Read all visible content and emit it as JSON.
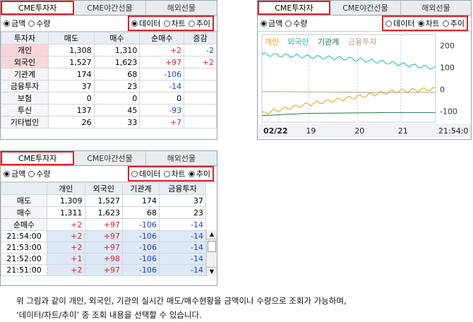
{
  "tabs": [
    "CME투자자",
    "CME야간선물",
    "해외선물"
  ],
  "unit_options": [
    "금액",
    "수량"
  ],
  "view_options": [
    "데이터",
    "차트",
    "추이"
  ],
  "panel1": {
    "headers": [
      "투자자",
      "매도",
      "매수",
      "순매수",
      "증감"
    ],
    "rows": [
      {
        "name": "개인",
        "sell": "1,308",
        "buy": "1,310",
        "net": "+2",
        "chg": "-2",
        "net_color": "red",
        "chg_color": "blue",
        "highlight": true
      },
      {
        "name": "외국인",
        "sell": "1,527",
        "buy": "1,623",
        "net": "+97",
        "chg": "+2",
        "net_color": "red",
        "chg_color": "red",
        "highlight": true
      },
      {
        "name": "기관계",
        "sell": "174",
        "buy": "68",
        "net": "-106",
        "chg": "",
        "net_color": "blue",
        "chg_color": "",
        "highlight": false
      },
      {
        "name": "금융투자",
        "sell": "37",
        "buy": "23",
        "net": "-14",
        "chg": "",
        "net_color": "blue",
        "chg_color": "",
        "highlight": false
      },
      {
        "name": "보험",
        "sell": "0",
        "buy": "0",
        "net": "0",
        "chg": "",
        "net_color": "",
        "chg_color": "",
        "highlight": false
      },
      {
        "name": "투신",
        "sell": "137",
        "buy": "45",
        "net": "-93",
        "chg": "",
        "net_color": "blue",
        "chg_color": "",
        "highlight": false
      },
      {
        "name": "기타법인",
        "sell": "26",
        "buy": "33",
        "net": "+7",
        "chg": "",
        "net_color": "red",
        "chg_color": "",
        "highlight": false
      }
    ]
  },
  "panel2": {
    "legend": [
      {
        "label": "개인",
        "color": "#e0a010"
      },
      {
        "label": "외국인",
        "color": "#20b8b0"
      },
      {
        "label": "기관계",
        "color": "#108040"
      },
      {
        "label": "금융투자",
        "color": "#b8a080"
      }
    ],
    "y_ticks": [
      "200",
      "100",
      "0",
      "-100"
    ],
    "x_ticks": [
      "02/22",
      "19",
      "20",
      "21",
      "21:54:0"
    ]
  },
  "chart_data": {
    "type": "line",
    "title": "",
    "xlabel": "",
    "ylabel": "",
    "ylim": [
      -150,
      250
    ],
    "x": [
      "02/22",
      "19",
      "20",
      "21",
      "21:54"
    ],
    "series": [
      {
        "name": "외국인",
        "values": [
          160,
          150,
          140,
          120,
          97
        ]
      },
      {
        "name": "개인",
        "values": [
          -110,
          -70,
          -40,
          -10,
          2
        ]
      },
      {
        "name": "기관계",
        "values": [
          -120,
          -110,
          -108,
          -106,
          -106
        ]
      },
      {
        "name": "금융투자",
        "values": [
          -10,
          -12,
          -13,
          -14,
          -14
        ]
      }
    ]
  },
  "panel3": {
    "headers": [
      "",
      "개인",
      "외국인",
      "기관계",
      "금융투자"
    ],
    "summary": [
      {
        "label": "매도",
        "v": [
          "1,309",
          "1,527",
          "174",
          "37"
        ],
        "c": [
          "",
          "",
          "",
          ""
        ]
      },
      {
        "label": "매수",
        "v": [
          "1,311",
          "1,623",
          "68",
          "23"
        ],
        "c": [
          "",
          "",
          "",
          ""
        ]
      },
      {
        "label": "순매수",
        "v": [
          "+2",
          "+97",
          "-106",
          "-14"
        ],
        "c": [
          "red",
          "red",
          "blue",
          "blue"
        ]
      }
    ],
    "history": [
      {
        "label": "21:54:00",
        "v": [
          "+2",
          "+97",
          "-106",
          "-14"
        ]
      },
      {
        "label": "21:53:00",
        "v": [
          "+2",
          "+97",
          "-106",
          "-14"
        ]
      },
      {
        "label": "21:52:00",
        "v": [
          "+1",
          "+98",
          "-106",
          "-14"
        ]
      },
      {
        "label": "21:51:00",
        "v": [
          "+2",
          "+97",
          "-106",
          "-14"
        ]
      }
    ]
  },
  "note_line1": "위 그림과 같이 개인, 외국인, 기관의 실시간 매도/매수현황을 금액이나 수량으로 조회가 가능하며,",
  "note_line2": "‘데이터/차트/추이’ 중 조회 내용을 선택할 수 있습니다."
}
